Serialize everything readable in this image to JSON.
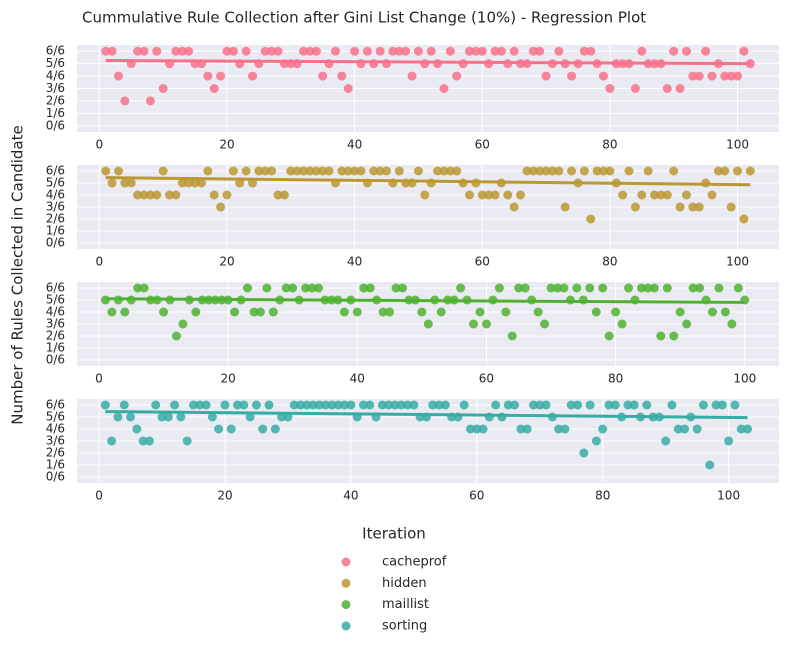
{
  "title": "Cummulative Rule Collection after Gini List Change (10%) - Regression Plot",
  "ylabel": "Number of Rules Collected in Candidate",
  "xlabel": "Iteration",
  "chart_data": [
    {
      "type": "scatter",
      "grid": true,
      "xlim": [
        -3.5,
        106.5
      ],
      "ylim": [
        -0.5,
        6.5
      ],
      "xticks": [
        0,
        20,
        40,
        60,
        80,
        100
      ],
      "yticks": [
        {
          "value": 0,
          "label": "0/6"
        },
        {
          "value": 1,
          "label": "1/6"
        },
        {
          "value": 2,
          "label": "2/6"
        },
        {
          "value": 3,
          "label": "3/6"
        },
        {
          "value": 4,
          "label": "4/6"
        },
        {
          "value": 5,
          "label": "5/6"
        },
        {
          "value": 6,
          "label": "6/6"
        }
      ],
      "series": [
        {
          "name": "cacheprof",
          "color": "#f77189",
          "x": [
            1,
            2,
            3,
            4,
            5,
            6,
            7,
            8,
            9,
            10,
            11,
            12,
            13,
            14,
            15,
            16,
            17,
            18,
            19,
            20,
            21,
            22,
            23,
            24,
            25,
            26,
            27,
            28,
            29,
            30,
            31,
            32,
            33,
            34,
            35,
            36,
            37,
            38,
            39,
            40,
            41,
            42,
            43,
            44,
            45,
            46,
            47,
            48,
            49,
            50,
            51,
            52,
            53,
            54,
            55,
            56,
            57,
            58,
            59,
            60,
            61,
            62,
            63,
            64,
            65,
            66,
            67,
            68,
            69,
            70,
            71,
            72,
            73,
            74,
            75,
            76,
            77,
            78,
            79,
            80,
            81,
            82,
            83,
            84,
            85,
            86,
            87,
            88,
            89,
            90,
            91,
            92,
            93,
            94,
            95,
            96,
            97,
            98,
            99,
            100,
            101,
            102
          ],
          "values": [
            6,
            6,
            4,
            2,
            5,
            6,
            6,
            2,
            6,
            3,
            5,
            6,
            6,
            6,
            5,
            5,
            4,
            3,
            4,
            6,
            6,
            5,
            6,
            4,
            5,
            6,
            6,
            6,
            5,
            5,
            5,
            6,
            6,
            6,
            4,
            5,
            6,
            4,
            3,
            6,
            5,
            6,
            5,
            6,
            5,
            6,
            6,
            6,
            4,
            6,
            5,
            6,
            5,
            3,
            6,
            4,
            5,
            6,
            6,
            6,
            5,
            6,
            6,
            5,
            6,
            5,
            5,
            6,
            6,
            4,
            5,
            6,
            5,
            4,
            5,
            6,
            6,
            5,
            4,
            3,
            5,
            5,
            5,
            3,
            6,
            5,
            5,
            5,
            3,
            6,
            3,
            6,
            4,
            4,
            6,
            4,
            5,
            4,
            4,
            4,
            6,
            5
          ]
        }
      ],
      "trend": {
        "x": [
          1,
          102
        ],
        "values": [
          5.25,
          5.0
        ]
      }
    },
    {
      "type": "scatter",
      "grid": true,
      "xlim": [
        -3.5,
        106.5
      ],
      "ylim": [
        -0.5,
        6.5
      ],
      "xticks": [
        0,
        20,
        40,
        60,
        80,
        100
      ],
      "yticks": [
        {
          "value": 0,
          "label": "0/6"
        },
        {
          "value": 1,
          "label": "1/6"
        },
        {
          "value": 2,
          "label": "2/6"
        },
        {
          "value": 3,
          "label": "3/6"
        },
        {
          "value": 4,
          "label": "4/6"
        },
        {
          "value": 5,
          "label": "5/6"
        },
        {
          "value": 6,
          "label": "6/6"
        }
      ],
      "series": [
        {
          "name": "hidden",
          "color": "#bb9832",
          "x": [
            1,
            2,
            3,
            4,
            5,
            6,
            7,
            8,
            9,
            10,
            11,
            12,
            13,
            14,
            15,
            16,
            17,
            18,
            19,
            20,
            21,
            22,
            23,
            24,
            25,
            26,
            27,
            28,
            29,
            30,
            31,
            32,
            33,
            34,
            35,
            36,
            37,
            38,
            39,
            40,
            41,
            42,
            43,
            44,
            45,
            46,
            47,
            48,
            49,
            50,
            51,
            52,
            53,
            54,
            55,
            56,
            57,
            58,
            59,
            60,
            61,
            62,
            63,
            64,
            65,
            66,
            67,
            68,
            69,
            70,
            71,
            72,
            73,
            74,
            75,
            76,
            77,
            78,
            79,
            80,
            81,
            82,
            83,
            84,
            85,
            86,
            87,
            88,
            89,
            90,
            91,
            92,
            93,
            94,
            95,
            96,
            97,
            98,
            99,
            100,
            101,
            102
          ],
          "values": [
            6,
            5,
            6,
            5,
            5,
            4,
            4,
            4,
            4,
            6,
            4,
            4,
            5,
            5,
            5,
            5,
            6,
            4,
            3,
            4,
            6,
            5,
            6,
            5,
            6,
            6,
            6,
            4,
            4,
            6,
            6,
            6,
            6,
            6,
            6,
            6,
            5,
            6,
            6,
            6,
            6,
            5,
            6,
            6,
            6,
            5,
            6,
            5,
            5,
            6,
            4,
            5,
            6,
            6,
            6,
            6,
            5,
            4,
            5,
            4,
            4,
            4,
            5,
            4,
            3,
            4,
            6,
            6,
            6,
            6,
            6,
            6,
            3,
            6,
            5,
            6,
            2,
            6,
            6,
            6,
            5,
            4,
            6,
            3,
            4,
            6,
            4,
            4,
            4,
            6,
            3,
            4,
            3,
            3,
            5,
            4,
            6,
            6,
            3,
            6,
            2,
            6
          ]
        }
      ],
      "trend": {
        "x": [
          1,
          102
        ],
        "values": [
          5.45,
          4.85
        ]
      }
    },
    {
      "type": "scatter",
      "grid": true,
      "xlim": [
        -3.4,
        105.3
      ],
      "ylim": [
        -0.5,
        6.5
      ],
      "xticks": [
        0,
        20,
        40,
        60,
        80,
        100
      ],
      "yticks": [
        {
          "value": 0,
          "label": "0/6"
        },
        {
          "value": 1,
          "label": "1/6"
        },
        {
          "value": 2,
          "label": "2/6"
        },
        {
          "value": 3,
          "label": "3/6"
        },
        {
          "value": 4,
          "label": "4/6"
        },
        {
          "value": 5,
          "label": "5/6"
        },
        {
          "value": 6,
          "label": "6/6"
        }
      ],
      "series": [
        {
          "name": "maillist",
          "color": "#50b131",
          "x": [
            1,
            2,
            3,
            4,
            5,
            6,
            7,
            8,
            9,
            10,
            11,
            12,
            13,
            14,
            15,
            16,
            17,
            18,
            19,
            20,
            21,
            22,
            23,
            24,
            25,
            26,
            27,
            28,
            29,
            30,
            31,
            32,
            33,
            34,
            35,
            36,
            37,
            38,
            39,
            40,
            41,
            42,
            43,
            44,
            45,
            46,
            47,
            48,
            49,
            50,
            51,
            52,
            53,
            54,
            55,
            56,
            57,
            58,
            59,
            60,
            61,
            62,
            63,
            64,
            65,
            66,
            67,
            68,
            69,
            70,
            71,
            72,
            73,
            74,
            75,
            76,
            77,
            78,
            79,
            80,
            81,
            82,
            83,
            84,
            85,
            86,
            87,
            88,
            89,
            90,
            91,
            92,
            93,
            94,
            95,
            96,
            97,
            98,
            99,
            100
          ],
          "values": [
            5,
            4,
            5,
            4,
            5,
            6,
            6,
            5,
            5,
            4,
            5,
            2,
            3,
            5,
            4,
            5,
            5,
            5,
            5,
            5,
            4,
            5,
            6,
            4,
            4,
            6,
            4,
            5,
            6,
            6,
            5,
            6,
            6,
            6,
            5,
            5,
            5,
            4,
            5,
            4,
            6,
            6,
            5,
            4,
            4,
            6,
            6,
            5,
            5,
            4,
            3,
            5,
            4,
            5,
            5,
            6,
            5,
            3,
            4,
            3,
            5,
            6,
            4,
            2,
            6,
            6,
            5,
            4,
            3,
            6,
            6,
            6,
            5,
            6,
            5,
            6,
            4,
            6,
            2,
            4,
            3,
            6,
            5,
            6,
            6,
            6,
            2,
            6,
            2,
            4,
            3,
            6,
            6,
            5,
            4,
            6,
            4,
            3,
            6,
            5
          ]
        }
      ],
      "trend": {
        "x": [
          1,
          100
        ],
        "values": [
          5.1,
          4.8
        ]
      }
    },
    {
      "type": "scatter",
      "grid": true,
      "xlim": [
        -3.5,
        108
      ],
      "ylim": [
        -0.5,
        6.5
      ],
      "xticks": [
        0,
        20,
        40,
        60,
        80,
        100
      ],
      "yticks": [
        {
          "value": 0,
          "label": "0/6"
        },
        {
          "value": 1,
          "label": "1/6"
        },
        {
          "value": 2,
          "label": "2/6"
        },
        {
          "value": 3,
          "label": "3/6"
        },
        {
          "value": 4,
          "label": "4/6"
        },
        {
          "value": 5,
          "label": "5/6"
        },
        {
          "value": 6,
          "label": "6/6"
        }
      ],
      "series": [
        {
          "name": "sorting",
          "color": "#36ada4",
          "x": [
            1,
            2,
            3,
            4,
            5,
            6,
            7,
            8,
            9,
            10,
            11,
            12,
            13,
            14,
            15,
            16,
            17,
            18,
            19,
            20,
            21,
            22,
            23,
            24,
            25,
            26,
            27,
            28,
            29,
            30,
            31,
            32,
            33,
            34,
            35,
            36,
            37,
            38,
            39,
            40,
            41,
            42,
            43,
            44,
            45,
            46,
            47,
            48,
            49,
            50,
            51,
            52,
            53,
            54,
            55,
            56,
            57,
            58,
            59,
            60,
            61,
            62,
            63,
            64,
            65,
            66,
            67,
            68,
            69,
            70,
            71,
            72,
            73,
            74,
            75,
            76,
            77,
            78,
            79,
            80,
            81,
            82,
            83,
            84,
            85,
            86,
            87,
            88,
            89,
            90,
            91,
            92,
            93,
            94,
            95,
            96,
            97,
            98,
            99,
            100,
            101,
            102,
            103
          ],
          "values": [
            6,
            3,
            5,
            6,
            5,
            4,
            3,
            3,
            6,
            5,
            5,
            6,
            5,
            3,
            6,
            6,
            6,
            5,
            4,
            6,
            4,
            6,
            6,
            5,
            6,
            4,
            6,
            4,
            5,
            5,
            6,
            6,
            6,
            6,
            6,
            6,
            6,
            6,
            6,
            6,
            5,
            6,
            6,
            5,
            6,
            6,
            6,
            6,
            6,
            6,
            5,
            5,
            6,
            6,
            6,
            5,
            5,
            6,
            4,
            4,
            4,
            5,
            6,
            5,
            6,
            6,
            4,
            4,
            6,
            6,
            6,
            5,
            4,
            4,
            6,
            6,
            2,
            6,
            3,
            4,
            6,
            6,
            5,
            6,
            6,
            5,
            6,
            5,
            5,
            3,
            6,
            4,
            4,
            5,
            4,
            6,
            1,
            6,
            6,
            3,
            6,
            4,
            4
          ]
        }
      ],
      "trend": {
        "x": [
          1,
          103
        ],
        "values": [
          5.45,
          4.95
        ]
      }
    }
  ]
}
